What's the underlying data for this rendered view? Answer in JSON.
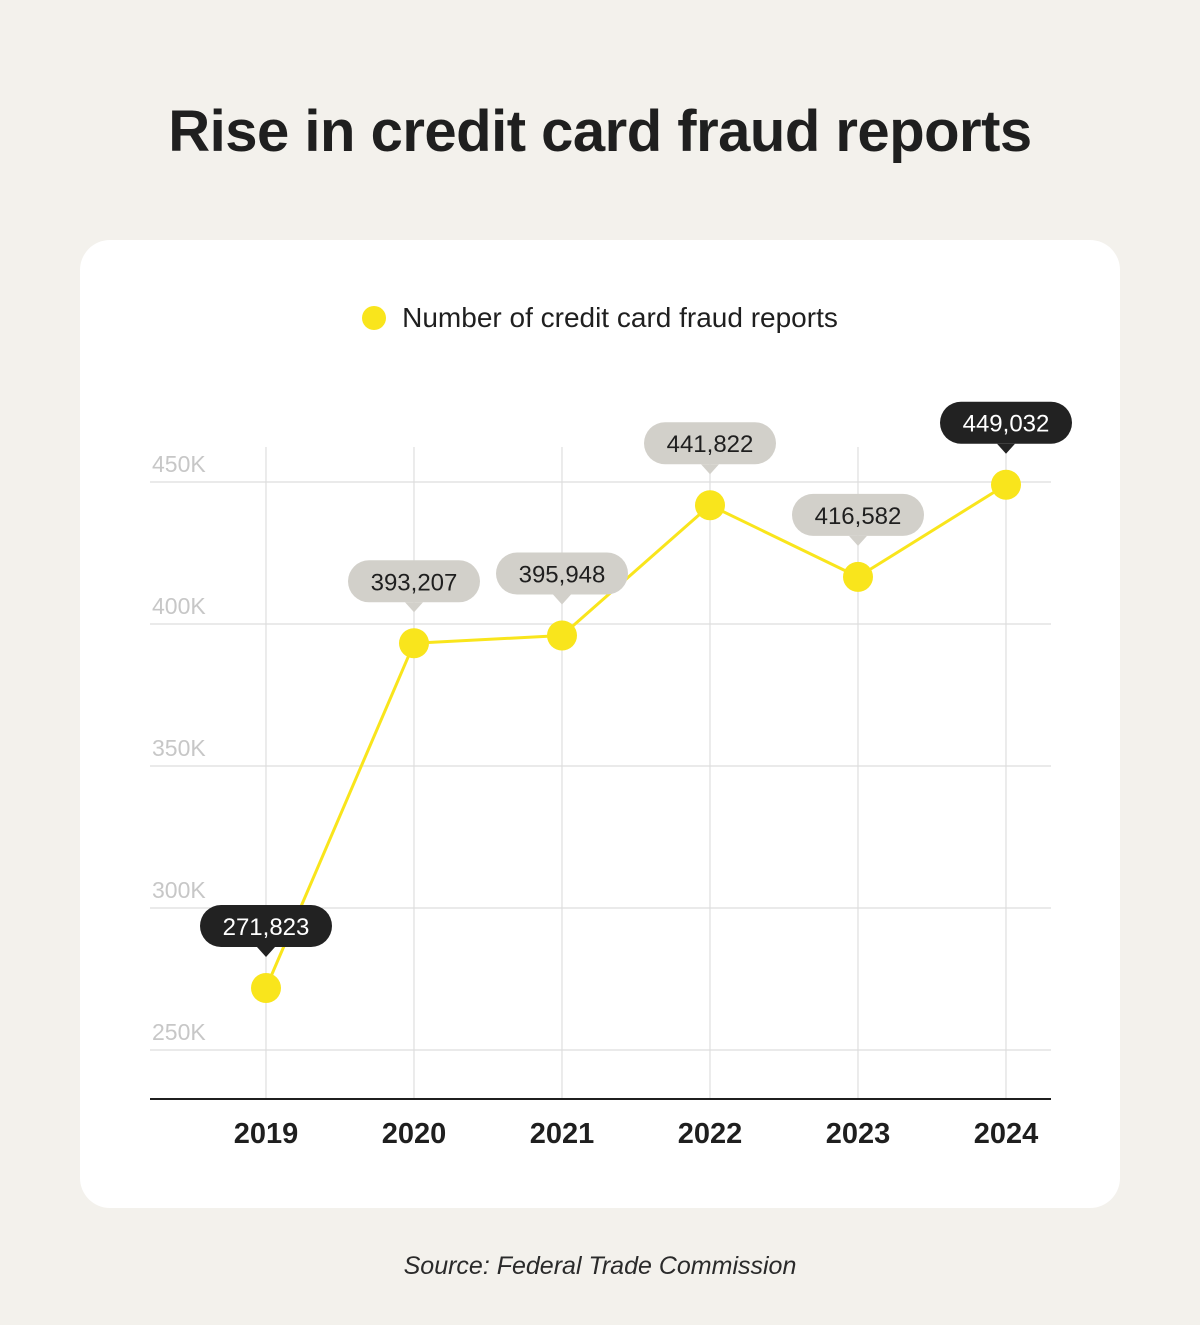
{
  "title": "Rise in credit card fraud reports",
  "source": "Source: Federal Trade Commission",
  "colors": {
    "series": "#f9e51c",
    "callout_dark": "#222222",
    "callout_light": "#d2d0ca",
    "grid": "#dedede",
    "tick": "#c7c7c7",
    "axis": "#1f1f1f"
  },
  "chart_data": {
    "type": "line",
    "title": "Rise in credit card fraud reports",
    "legend_position": "top-center",
    "grid": true,
    "categories": [
      "2019",
      "2020",
      "2021",
      "2022",
      "2023",
      "2024"
    ],
    "y_ticks": [
      250000,
      300000,
      350000,
      400000,
      450000
    ],
    "y_tick_labels": [
      "250K",
      "300K",
      "350K",
      "400K",
      "450K"
    ],
    "ylim": [
      235000,
      462000
    ],
    "series": [
      {
        "name": "Number of credit card fraud reports",
        "values": [
          271823,
          393207,
          395948,
          441822,
          416582,
          449032
        ],
        "labels": [
          "271,823",
          "393,207",
          "395,948",
          "441,822",
          "416,582",
          "449,032"
        ],
        "callout_styles": [
          "dark",
          "light",
          "light",
          "light",
          "light",
          "dark"
        ]
      }
    ]
  }
}
